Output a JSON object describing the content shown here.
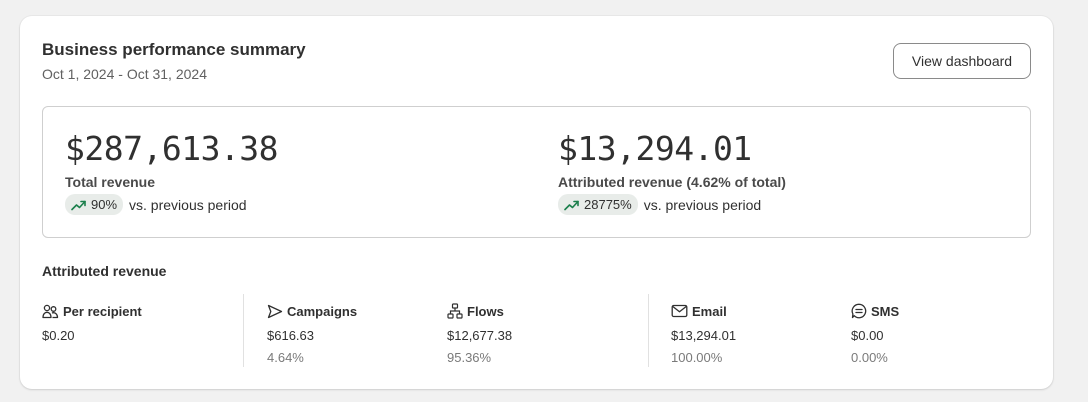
{
  "header": {
    "title": "Business performance summary",
    "date_range": "Oct 1, 2024 - Oct 31, 2024",
    "view_button_label": "View dashboard"
  },
  "total_revenue": {
    "value": "$287,613.38",
    "label": "Total revenue",
    "change": "90%",
    "change_icon": "trend-up-icon",
    "vs_text": "vs. previous period"
  },
  "attributed_revenue_summary": {
    "value": "$13,294.01",
    "label": "Attributed revenue (4.62% of total)",
    "change": "28775%",
    "change_icon": "trend-up-icon",
    "vs_text": "vs. previous period"
  },
  "attributed_section": {
    "title": "Attributed revenue",
    "metrics": [
      {
        "label": "Per recipient",
        "icon": "people-icon",
        "value": "$0.20",
        "pct": ""
      },
      {
        "label": "Campaigns",
        "icon": "send-icon",
        "value": "$616.63",
        "pct": "4.64%"
      },
      {
        "label": "Flows",
        "icon": "flow-icon",
        "value": "$12,677.38",
        "pct": "95.36%"
      },
      {
        "label": "Email",
        "icon": "email-icon",
        "value": "$13,294.01",
        "pct": "100.00%"
      },
      {
        "label": "SMS",
        "icon": "sms-icon",
        "value": "$0.00",
        "pct": "0.00%"
      }
    ]
  },
  "colors": {
    "trend_up": "#1a7f4b",
    "badge_bg": "#e8ece9",
    "text": "#303030",
    "muted": "#616161"
  }
}
